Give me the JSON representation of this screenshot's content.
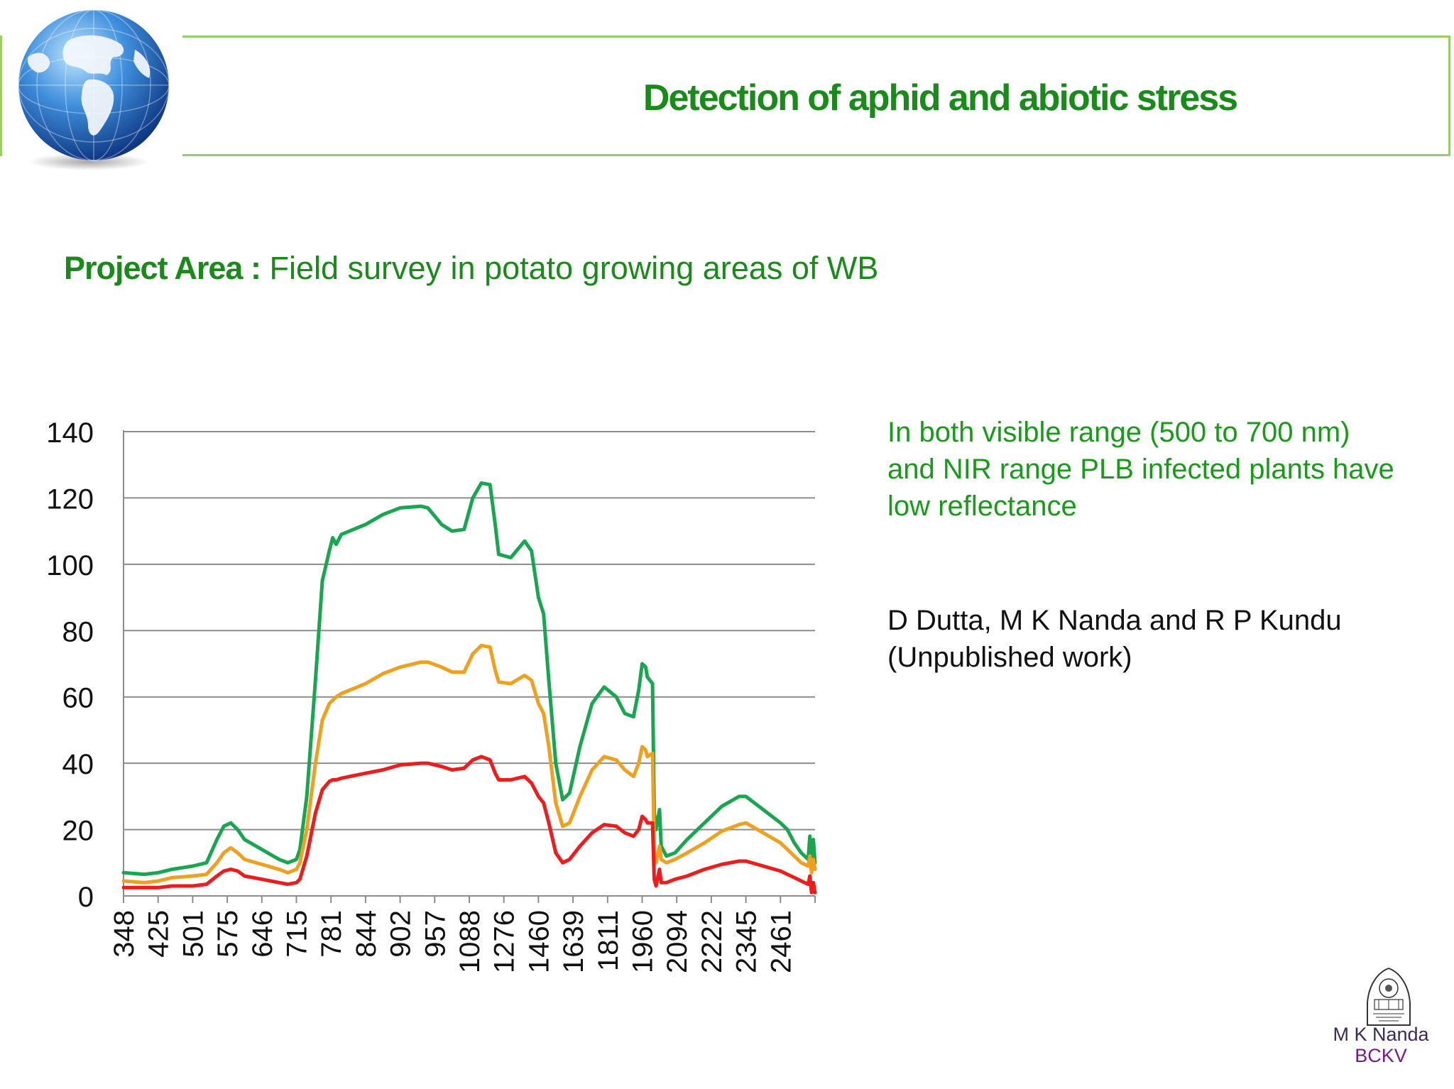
{
  "header": {
    "title": "Detection of aphid and abiotic stress"
  },
  "project": {
    "label": "Project Area :",
    "text": " Field survey in potato growing areas of  WB"
  },
  "note": "In both visible range (500 to 700 nm) and NIR range PLB infected plants have low reflectance",
  "author": "D Dutta, M K Nanda and R P Kundu (Unpublished work)",
  "signature": {
    "name": "M K Nanda",
    "org": "BCKV"
  },
  "chart_data": {
    "type": "line",
    "title": "",
    "xlabel": "",
    "ylabel": "",
    "ylim": [
      0,
      140
    ],
    "yticks": [
      0,
      20,
      40,
      60,
      80,
      100,
      120,
      140
    ],
    "grid": true,
    "legend": "none",
    "x_ticks": [
      "348",
      "425",
      "501",
      "575",
      "646",
      "715",
      "781",
      "844",
      "902",
      "957",
      "1088",
      "1276",
      "1460",
      "1639",
      "1811",
      "1960",
      "2094",
      "2222",
      "2345",
      "2461"
    ],
    "x_ticks_index": [
      0,
      1,
      2,
      3,
      4,
      5,
      6,
      7,
      8,
      9,
      10,
      11,
      12,
      13,
      14,
      15,
      16,
      17,
      18,
      19
    ],
    "x_index_max": 19.4,
    "series": [
      {
        "color": "#1aa550",
        "points": [
          [
            0,
            7
          ],
          [
            0.6,
            6.5
          ],
          [
            1,
            7
          ],
          [
            1.4,
            8
          ],
          [
            2,
            9
          ],
          [
            2.4,
            10
          ],
          [
            2.7,
            17
          ],
          [
            2.9,
            21
          ],
          [
            3.1,
            22
          ],
          [
            3.3,
            20
          ],
          [
            3.5,
            17
          ],
          [
            4,
            14
          ],
          [
            4.5,
            11
          ],
          [
            4.75,
            10
          ],
          [
            5,
            11
          ],
          [
            5.1,
            14
          ],
          [
            5.3,
            30
          ],
          [
            5.55,
            65
          ],
          [
            5.75,
            95
          ],
          [
            5.95,
            104
          ],
          [
            6.05,
            108
          ],
          [
            6.15,
            106
          ],
          [
            6.3,
            109
          ],
          [
            7,
            112
          ],
          [
            7.5,
            115
          ],
          [
            8,
            117
          ],
          [
            8.6,
            117.5
          ],
          [
            8.8,
            117
          ],
          [
            9.2,
            112
          ],
          [
            9.5,
            110
          ],
          [
            9.85,
            110.5
          ],
          [
            10.1,
            120
          ],
          [
            10.35,
            124.5
          ],
          [
            10.6,
            124
          ],
          [
            10.75,
            112
          ],
          [
            10.85,
            103
          ],
          [
            11.2,
            102
          ],
          [
            11.6,
            107
          ],
          [
            11.8,
            104
          ],
          [
            12,
            90
          ],
          [
            12.15,
            85
          ],
          [
            12.3,
            65
          ],
          [
            12.5,
            40
          ],
          [
            12.7,
            29
          ],
          [
            12.9,
            31
          ],
          [
            13.2,
            45
          ],
          [
            13.55,
            58
          ],
          [
            13.9,
            63
          ],
          [
            14.25,
            60
          ],
          [
            14.5,
            55
          ],
          [
            14.75,
            54
          ],
          [
            14.9,
            62
          ],
          [
            15,
            70
          ],
          [
            15.1,
            69
          ],
          [
            15.15,
            66
          ],
          [
            15.3,
            64
          ],
          [
            15.35,
            25
          ],
          [
            15.4,
            20
          ],
          [
            15.5,
            26
          ],
          [
            15.55,
            15
          ],
          [
            15.7,
            12
          ],
          [
            15.95,
            13
          ],
          [
            16.3,
            17
          ],
          [
            16.8,
            22
          ],
          [
            17.3,
            27
          ],
          [
            17.8,
            30
          ],
          [
            18,
            30
          ],
          [
            18.5,
            26
          ],
          [
            19,
            22
          ],
          [
            19.2,
            20
          ],
          [
            19.4,
            16
          ],
          [
            19.6,
            13
          ],
          [
            19.8,
            11
          ],
          [
            19.85,
            18
          ],
          [
            19.9,
            9
          ],
          [
            19.95,
            17
          ],
          [
            20,
            10
          ]
        ]
      },
      {
        "color": "#f0a020",
        "points": [
          [
            0,
            4.5
          ],
          [
            0.6,
            4
          ],
          [
            1,
            4.5
          ],
          [
            1.4,
            5.5
          ],
          [
            2,
            6
          ],
          [
            2.4,
            6.5
          ],
          [
            2.7,
            10
          ],
          [
            2.9,
            13
          ],
          [
            3.1,
            14.5
          ],
          [
            3.3,
            13
          ],
          [
            3.5,
            11
          ],
          [
            4,
            9.5
          ],
          [
            4.5,
            8
          ],
          [
            4.75,
            7
          ],
          [
            5,
            8
          ],
          [
            5.1,
            10
          ],
          [
            5.3,
            20
          ],
          [
            5.55,
            40
          ],
          [
            5.75,
            53
          ],
          [
            5.95,
            58
          ],
          [
            6.05,
            59
          ],
          [
            6.15,
            60
          ],
          [
            6.3,
            61
          ],
          [
            7,
            64
          ],
          [
            7.5,
            67
          ],
          [
            8,
            69
          ],
          [
            8.6,
            70.5
          ],
          [
            8.8,
            70.5
          ],
          [
            9.2,
            69
          ],
          [
            9.5,
            67.5
          ],
          [
            9.85,
            67.5
          ],
          [
            10.1,
            73
          ],
          [
            10.35,
            75.5
          ],
          [
            10.6,
            75
          ],
          [
            10.75,
            68
          ],
          [
            10.85,
            64.5
          ],
          [
            11.2,
            64
          ],
          [
            11.6,
            66.5
          ],
          [
            11.8,
            65
          ],
          [
            12,
            58
          ],
          [
            12.15,
            55
          ],
          [
            12.3,
            45
          ],
          [
            12.5,
            28
          ],
          [
            12.7,
            21
          ],
          [
            12.9,
            22
          ],
          [
            13.2,
            30
          ],
          [
            13.55,
            38
          ],
          [
            13.9,
            42
          ],
          [
            14.25,
            41
          ],
          [
            14.5,
            38
          ],
          [
            14.75,
            36
          ],
          [
            14.9,
            40
          ],
          [
            15,
            45
          ],
          [
            15.1,
            44
          ],
          [
            15.15,
            42
          ],
          [
            15.3,
            43
          ],
          [
            15.35,
            14
          ],
          [
            15.4,
            10
          ],
          [
            15.5,
            15
          ],
          [
            15.55,
            11
          ],
          [
            15.7,
            10
          ],
          [
            15.95,
            11
          ],
          [
            16.3,
            13
          ],
          [
            16.8,
            16
          ],
          [
            17.3,
            19.5
          ],
          [
            17.8,
            21.5
          ],
          [
            18,
            22
          ],
          [
            18.5,
            19
          ],
          [
            19,
            16
          ],
          [
            19.2,
            14
          ],
          [
            19.4,
            12
          ],
          [
            19.6,
            10
          ],
          [
            19.8,
            9
          ],
          [
            19.85,
            12
          ],
          [
            19.9,
            7
          ],
          [
            19.95,
            11
          ],
          [
            20,
            8
          ]
        ]
      },
      {
        "color": "#ee1c1c",
        "points": [
          [
            0,
            2.5
          ],
          [
            0.6,
            2.5
          ],
          [
            1,
            2.5
          ],
          [
            1.4,
            3
          ],
          [
            2,
            3
          ],
          [
            2.4,
            3.5
          ],
          [
            2.7,
            6
          ],
          [
            2.9,
            7.5
          ],
          [
            3.1,
            8
          ],
          [
            3.3,
            7.5
          ],
          [
            3.5,
            6
          ],
          [
            4,
            5
          ],
          [
            4.5,
            4
          ],
          [
            4.75,
            3.5
          ],
          [
            5,
            4
          ],
          [
            5.1,
            5
          ],
          [
            5.3,
            12
          ],
          [
            5.55,
            25
          ],
          [
            5.75,
            32
          ],
          [
            5.95,
            34.5
          ],
          [
            6.05,
            35
          ],
          [
            6.15,
            35
          ],
          [
            6.3,
            35.5
          ],
          [
            7,
            37
          ],
          [
            7.5,
            38
          ],
          [
            8,
            39.5
          ],
          [
            8.6,
            40
          ],
          [
            8.8,
            40
          ],
          [
            9.2,
            39
          ],
          [
            9.5,
            38
          ],
          [
            9.85,
            38.5
          ],
          [
            10.1,
            41
          ],
          [
            10.35,
            42
          ],
          [
            10.6,
            41
          ],
          [
            10.75,
            37
          ],
          [
            10.85,
            35
          ],
          [
            11.2,
            35
          ],
          [
            11.6,
            36
          ],
          [
            11.8,
            34
          ],
          [
            12,
            30
          ],
          [
            12.15,
            28
          ],
          [
            12.3,
            22
          ],
          [
            12.5,
            13
          ],
          [
            12.7,
            10
          ],
          [
            12.9,
            11
          ],
          [
            13.2,
            15
          ],
          [
            13.55,
            19
          ],
          [
            13.9,
            21.5
          ],
          [
            14.25,
            21
          ],
          [
            14.5,
            19
          ],
          [
            14.75,
            18
          ],
          [
            14.9,
            20
          ],
          [
            15,
            24
          ],
          [
            15.1,
            23
          ],
          [
            15.15,
            22
          ],
          [
            15.3,
            22
          ],
          [
            15.35,
            5
          ],
          [
            15.4,
            3
          ],
          [
            15.5,
            8
          ],
          [
            15.55,
            4
          ],
          [
            15.7,
            4
          ],
          [
            15.95,
            5
          ],
          [
            16.3,
            6
          ],
          [
            16.8,
            8
          ],
          [
            17.3,
            9.5
          ],
          [
            17.8,
            10.5
          ],
          [
            18,
            10.5
          ],
          [
            18.5,
            9
          ],
          [
            19,
            7.5
          ],
          [
            19.2,
            6.5
          ],
          [
            19.4,
            5.5
          ],
          [
            19.6,
            4.5
          ],
          [
            19.8,
            3.5
          ],
          [
            19.85,
            6
          ],
          [
            19.9,
            1
          ],
          [
            19.95,
            4
          ],
          [
            20,
            1
          ]
        ]
      }
    ]
  }
}
